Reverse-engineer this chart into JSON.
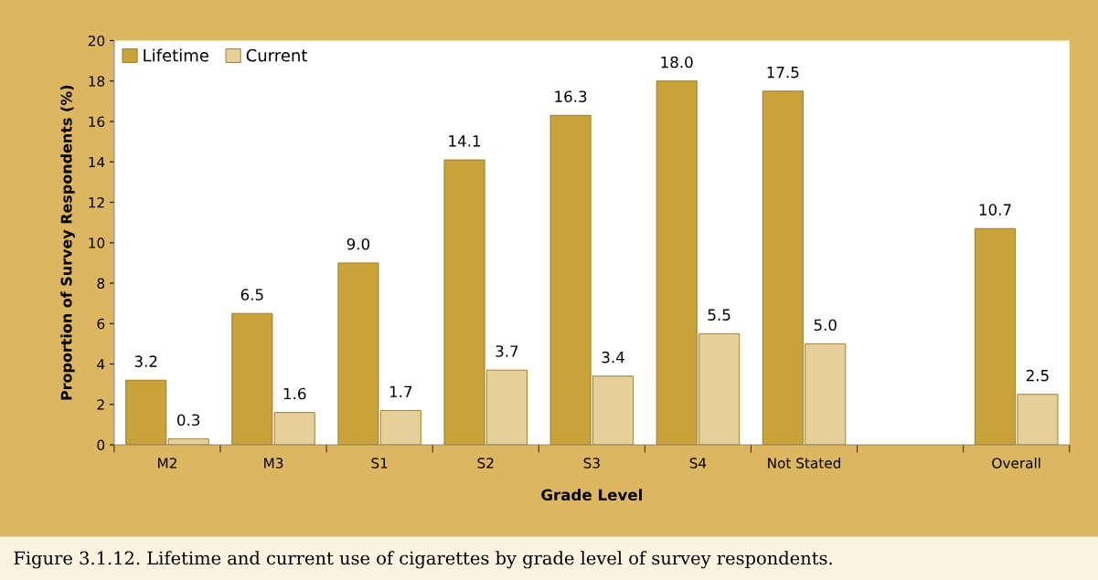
{
  "chart_data": {
    "type": "bar",
    "xlabel": "Grade Level",
    "ylabel": "Proportion of Survey Respondents (%)",
    "categories": [
      "M2",
      "M3",
      "S1",
      "S2",
      "S3",
      "S4",
      "Not Stated",
      null,
      "Overall"
    ],
    "series": [
      {
        "name": "Lifetime",
        "color": "#c9a23a",
        "values": [
          3.2,
          6.5,
          9.0,
          14.1,
          16.3,
          18.0,
          17.5,
          null,
          10.7
        ],
        "value_labels": [
          "3.2",
          "6.5",
          "9.0",
          "14.1",
          "16.3",
          "18.0",
          "17.5",
          null,
          "10.7"
        ]
      },
      {
        "name": "Current",
        "color": "#e6d09a",
        "values": [
          0.3,
          1.6,
          1.7,
          3.7,
          3.4,
          5.5,
          5.0,
          null,
          2.5
        ],
        "value_labels": [
          "0.3",
          "1.6",
          "1.7",
          "3.7",
          "3.4",
          "5.5",
          "5.0",
          null,
          "2.5"
        ]
      }
    ],
    "ylim": [
      0,
      20
    ],
    "yticks": [
      0,
      2,
      4,
      6,
      8,
      10,
      12,
      14,
      16,
      18,
      20
    ],
    "legend": "top left",
    "grid": false,
    "annotations": [
      "Figure 3.1.12. Lifetime and current use of cigarettes by grade level of survey respondents."
    ]
  }
}
